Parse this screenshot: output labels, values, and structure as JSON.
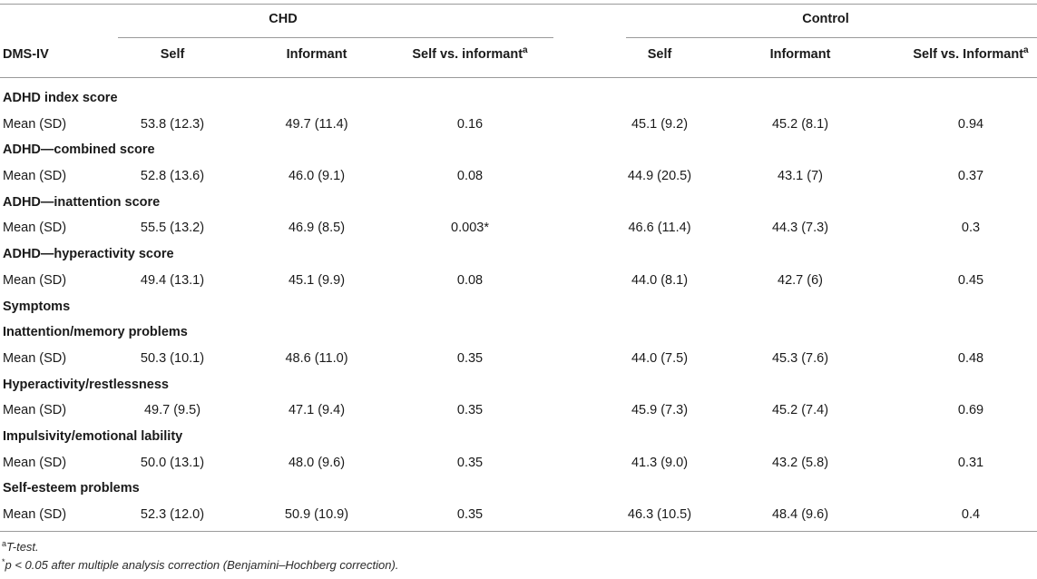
{
  "groups": [
    {
      "label": "CHD"
    },
    {
      "label": "Control"
    }
  ],
  "header": {
    "dms": "DMS-IV",
    "chd_self": "Self",
    "chd_informant": "Informant",
    "chd_vs": "Self vs. informant",
    "chd_vs_sup": "a",
    "ctl_self": "Self",
    "ctl_informant": "Informant",
    "ctl_vs": "Self vs. Informant",
    "ctl_vs_sup": "a"
  },
  "sections": [
    {
      "title": "ADHD index score",
      "rows": [
        {
          "label": "Mean (SD)",
          "chd_self": "53.8 (12.3)",
          "chd_inf": "49.7 (11.4)",
          "chd_p": "0.16",
          "ctl_self": "45.1 (9.2)",
          "ctl_inf": "45.2 (8.1)",
          "ctl_p": "0.94"
        }
      ]
    },
    {
      "title": "ADHD—combined score",
      "rows": [
        {
          "label": "Mean (SD)",
          "chd_self": "52.8 (13.6)",
          "chd_inf": "46.0 (9.1)",
          "chd_p": "0.08",
          "ctl_self": "44.9 (20.5)",
          "ctl_inf": "43.1 (7)",
          "ctl_p": "0.37"
        }
      ]
    },
    {
      "title": "ADHD—inattention score",
      "rows": [
        {
          "label": "Mean (SD)",
          "chd_self": "55.5 (13.2)",
          "chd_inf": "46.9 (8.5)",
          "chd_p": "0.003*",
          "ctl_self": "46.6 (11.4)",
          "ctl_inf": "44.3 (7.3)",
          "ctl_p": "0.3"
        }
      ]
    },
    {
      "title": "ADHD—hyperactivity score",
      "rows": [
        {
          "label": "Mean (SD)",
          "chd_self": "49.4 (13.1)",
          "chd_inf": "45.1 (9.9)",
          "chd_p": "0.08",
          "ctl_self": "44.0 (8.1)",
          "ctl_inf": "42.7 (6)",
          "ctl_p": "0.45"
        }
      ]
    },
    {
      "title": "Symptoms",
      "rows": []
    },
    {
      "title": "Inattention/memory problems",
      "rows": [
        {
          "label": "Mean (SD)",
          "chd_self": "50.3 (10.1)",
          "chd_inf": "48.6 (11.0)",
          "chd_p": "0.35",
          "ctl_self": "44.0 (7.5)",
          "ctl_inf": "45.3 (7.6)",
          "ctl_p": "0.48"
        }
      ]
    },
    {
      "title": "Hyperactivity/restlessness",
      "rows": [
        {
          "label": "Mean (SD)",
          "chd_self": "49.7 (9.5)",
          "chd_inf": "47.1 (9.4)",
          "chd_p": "0.35",
          "ctl_self": "45.9 (7.3)",
          "ctl_inf": "45.2 (7.4)",
          "ctl_p": "0.69"
        }
      ]
    },
    {
      "title": "Impulsivity/emotional lability",
      "rows": [
        {
          "label": "Mean (SD)",
          "chd_self": "50.0 (13.1)",
          "chd_inf": "48.0 (9.6)",
          "chd_p": "0.35",
          "ctl_self": "41.3 (9.0)",
          "ctl_inf": "43.2 (5.8)",
          "ctl_p": "0.31"
        }
      ]
    },
    {
      "title": "Self-esteem problems",
      "rows": [
        {
          "label": "Mean (SD)",
          "chd_self": "52.3 (12.0)",
          "chd_inf": "50.9 (10.9)",
          "chd_p": "0.35",
          "ctl_self": "46.3 (10.5)",
          "ctl_inf": "48.4 (9.6)",
          "ctl_p": "0.4"
        }
      ]
    }
  ],
  "footnotes": {
    "a_sup": "a",
    "a_text": "T-test.",
    "star_sup": "*",
    "star_text": "p < 0.05 after multiple analysis correction (Benjamini–Hochberg correction)."
  }
}
